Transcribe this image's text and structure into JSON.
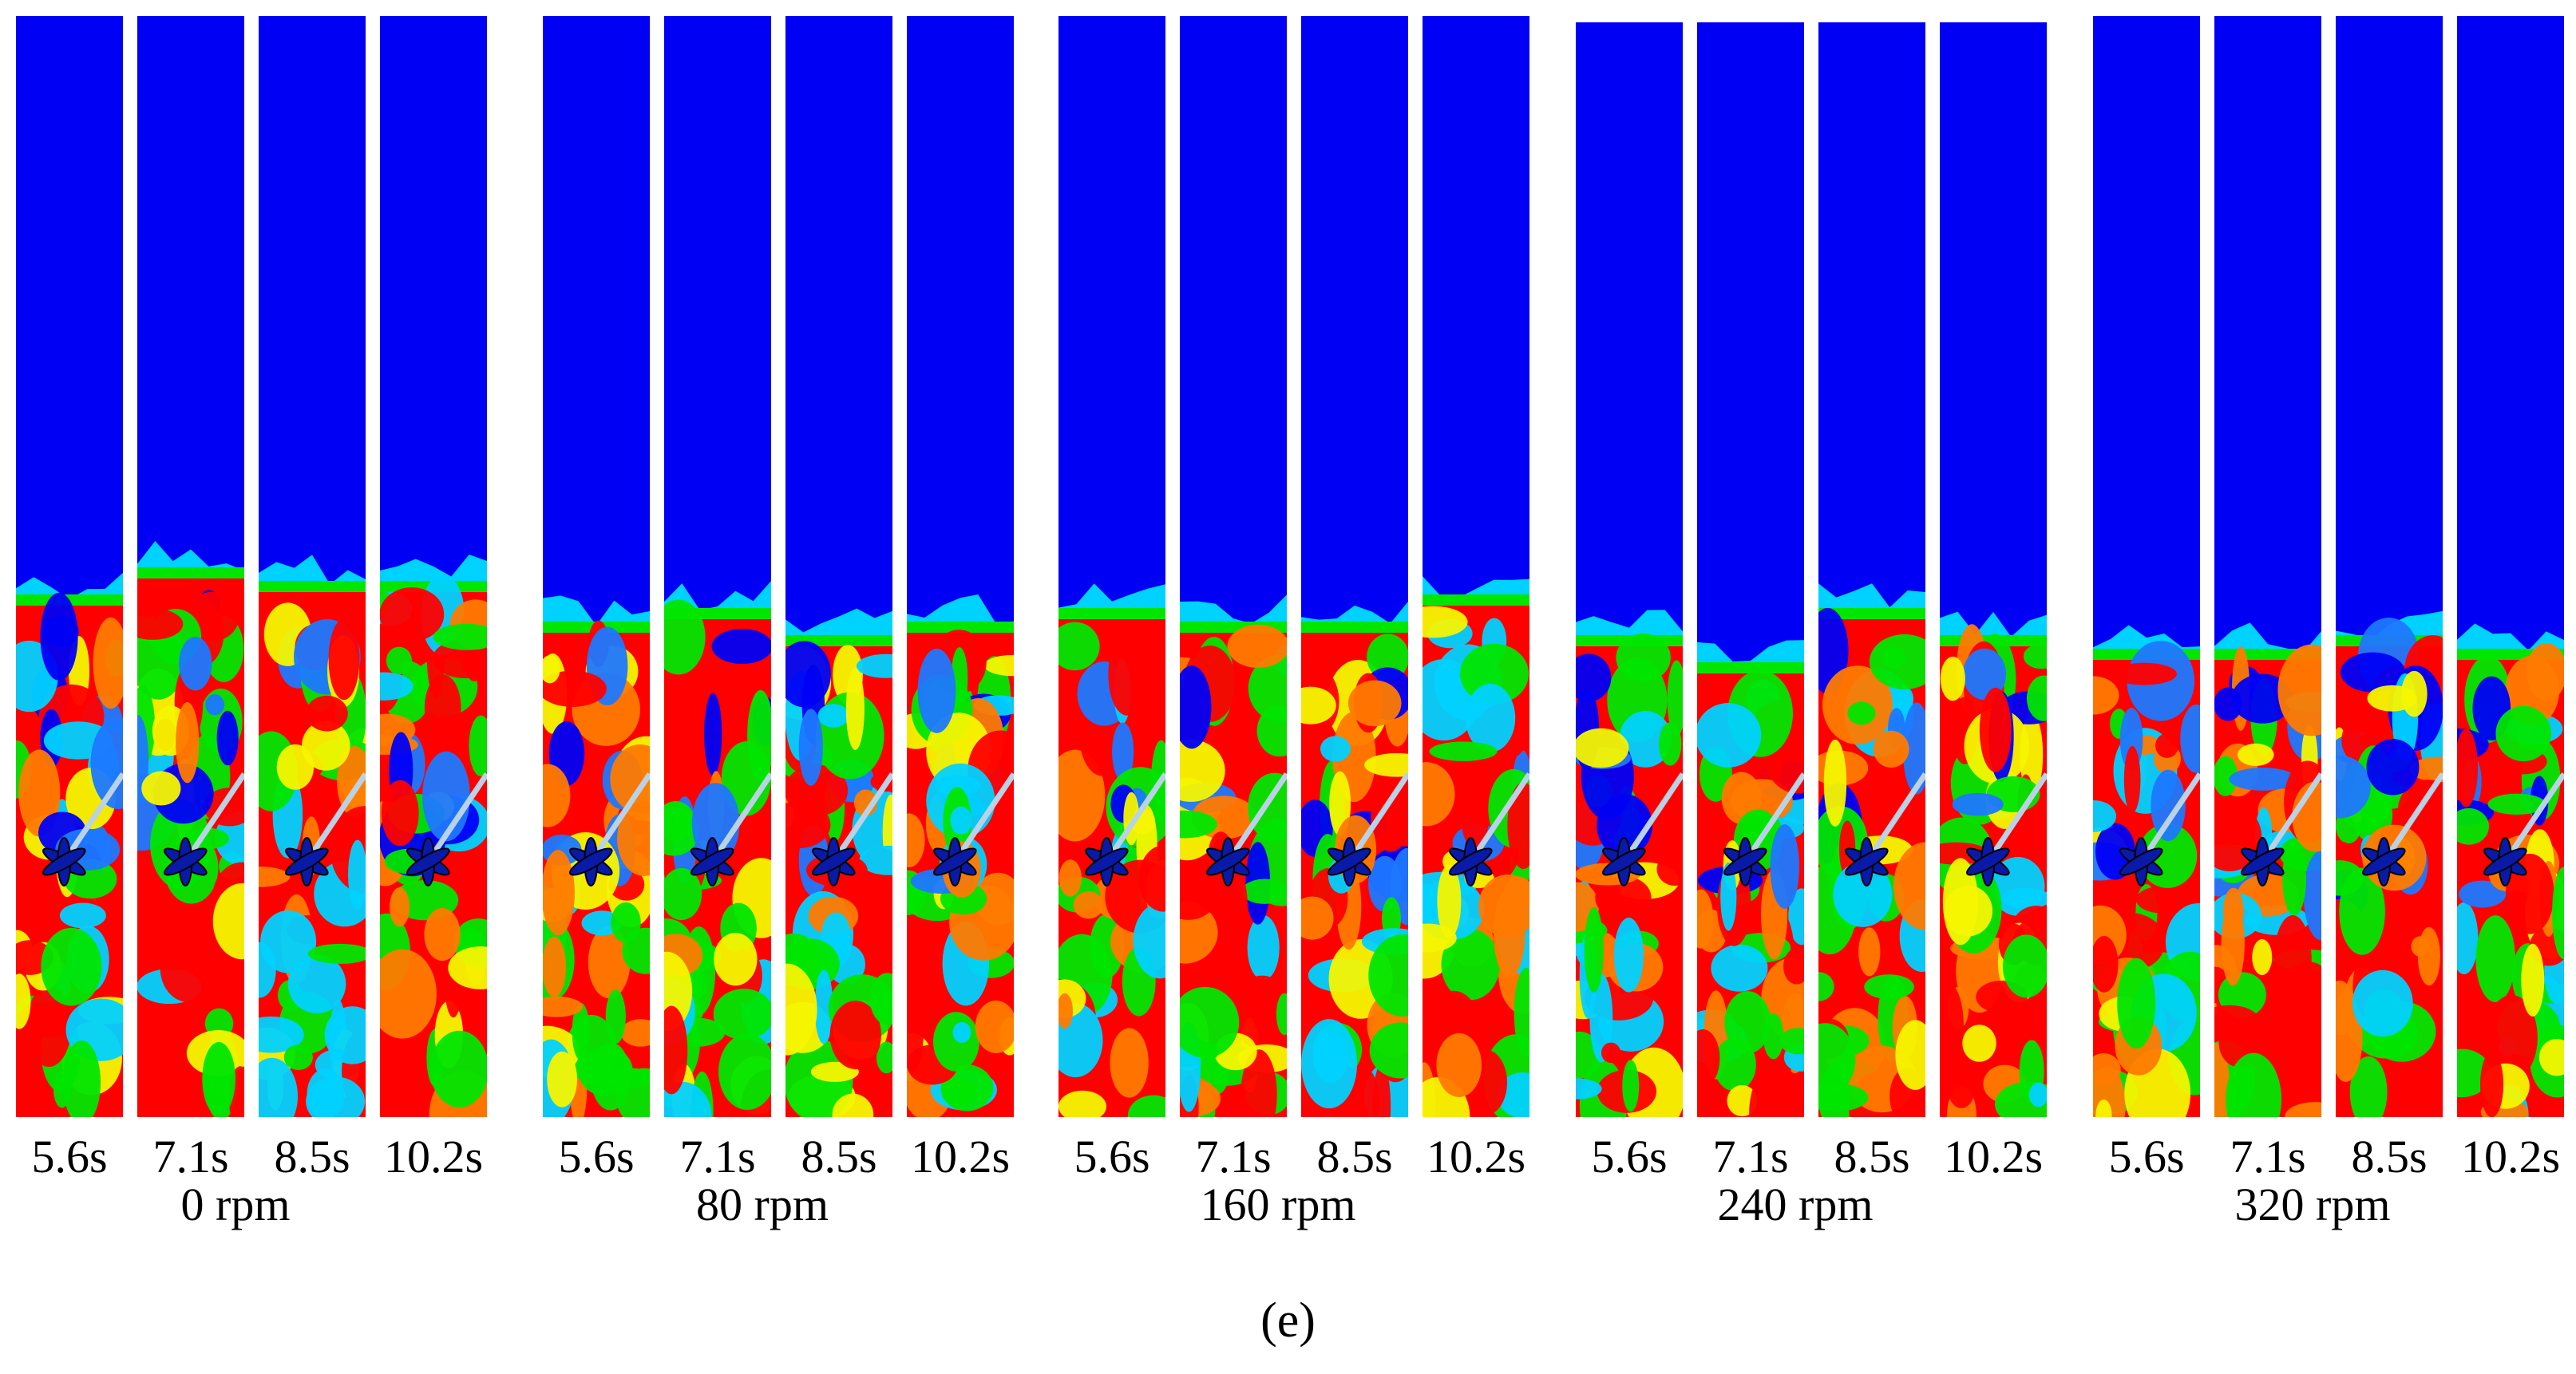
{
  "figure": {
    "caption": "(e)",
    "colors": {
      "background": "#ffffff",
      "gas": "#0000f5",
      "red": "#ff0000",
      "orange": "#ff7a00",
      "yellow": "#f5f500",
      "green": "#00e600",
      "cyan": "#00d2ff",
      "light_blue": "#1e78ff"
    },
    "groups": [
      {
        "rpm_label": "0 rpm",
        "times": [
          "5.6s",
          "7.1s",
          "8.5s",
          "10.2s"
        ],
        "interface_fraction": [
          0.43,
          0.41,
          0.42,
          0.42
        ]
      },
      {
        "rpm_label": "80 rpm",
        "times": [
          "5.6s",
          "7.1s",
          "8.5s",
          "10.2s"
        ],
        "interface_fraction": [
          0.45,
          0.44,
          0.46,
          0.45
        ]
      },
      {
        "rpm_label": "160 rpm",
        "times": [
          "5.6s",
          "7.1s",
          "8.5s",
          "10.2s"
        ],
        "interface_fraction": [
          0.44,
          0.45,
          0.45,
          0.43
        ]
      },
      {
        "rpm_label": "240 rpm",
        "times": [
          "5.6s",
          "7.1s",
          "8.5s",
          "10.2s"
        ],
        "interface_fraction": [
          0.46,
          0.48,
          0.44,
          0.46
        ]
      },
      {
        "rpm_label": "320 rpm",
        "times": [
          "5.6s",
          "7.1s",
          "8.5s",
          "10.2s"
        ],
        "interface_fraction": [
          0.47,
          0.47,
          0.46,
          0.47
        ]
      }
    ]
  }
}
